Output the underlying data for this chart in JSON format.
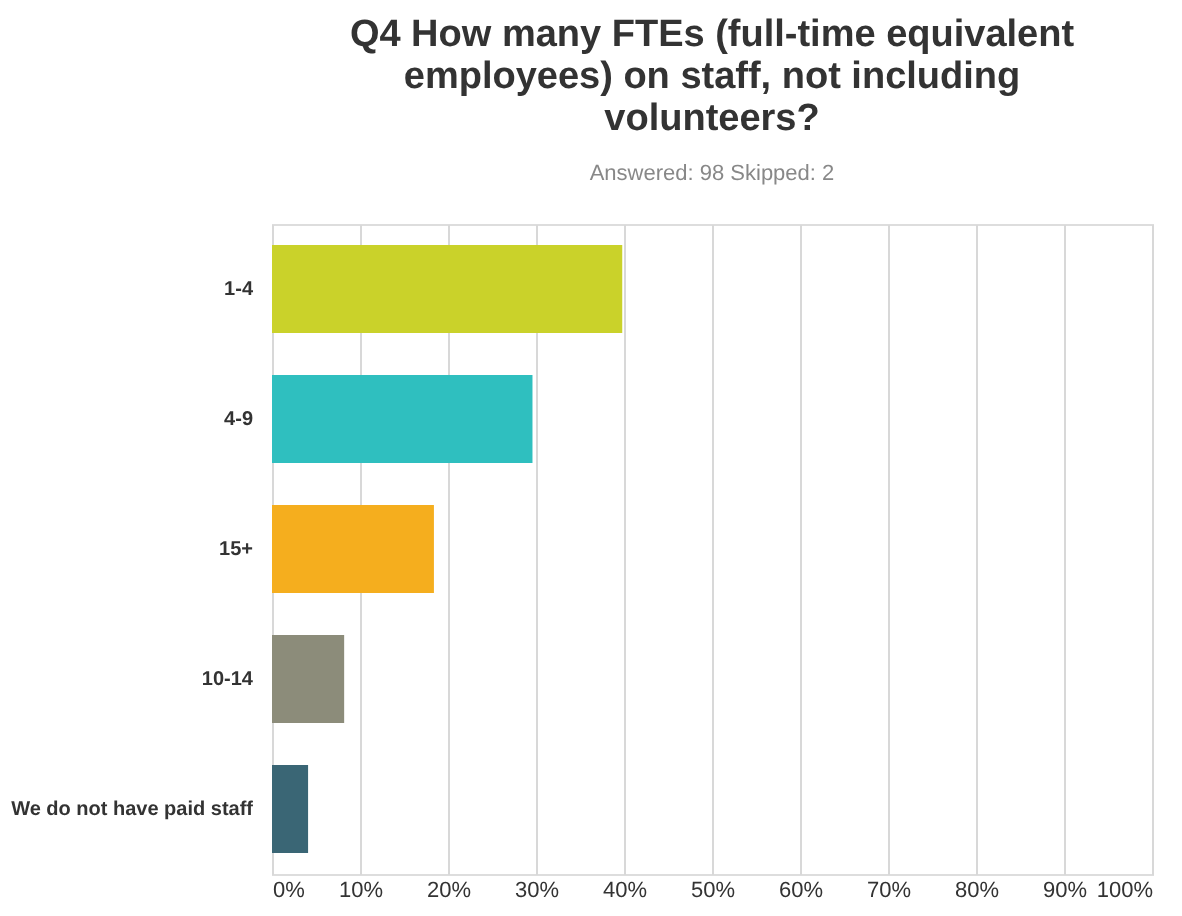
{
  "chart_data": {
    "type": "bar",
    "orientation": "horizontal",
    "title": "Q4 How many FTEs (full-time equivalent employees) on staff, not including volunteers?",
    "subtitle": "Answered: 98    Skipped: 2",
    "categories": [
      "1-4",
      "4-9",
      "15+",
      "10-14",
      "We do not have paid staff"
    ],
    "values": [
      39.8,
      29.6,
      18.4,
      8.2,
      4.1
    ],
    "colors": [
      "#cad22a",
      "#2fbfbf",
      "#f5ae1e",
      "#8c8c7a",
      "#3a6675"
    ],
    "xlim": [
      0,
      100
    ],
    "xticks": [
      {
        "value": 0,
        "label": "0%"
      },
      {
        "value": 10,
        "label": "10%"
      },
      {
        "value": 20,
        "label": "20%"
      },
      {
        "value": 30,
        "label": "30%"
      },
      {
        "value": 40,
        "label": "40%"
      },
      {
        "value": 50,
        "label": "50%"
      },
      {
        "value": 60,
        "label": "60%"
      },
      {
        "value": 70,
        "label": "70%"
      },
      {
        "value": 80,
        "label": "80%"
      },
      {
        "value": 90,
        "label": "90%"
      },
      {
        "value": 100,
        "label": "100%"
      }
    ],
    "grid": "x",
    "legend": false
  }
}
